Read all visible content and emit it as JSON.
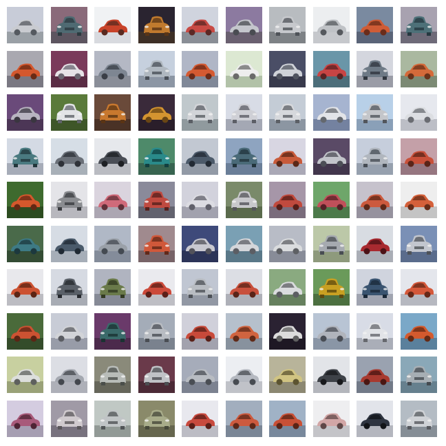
{
  "grid": {
    "rows": 10,
    "cols": 10
  },
  "tiles": [
    {
      "bg": "#c8ccd8",
      "ground": "#9aa0a6",
      "car": "#c9cbd0",
      "dark": "#555a60",
      "view": "side"
    },
    {
      "bg": "#8a6a7a",
      "ground": "#5d5560",
      "car": "#4f6a72",
      "dark": "#2c3a40",
      "view": "front"
    },
    {
      "bg": "#f0f2f4",
      "ground": "#d8dadf",
      "car": "#c8432a",
      "dark": "#5a2a20",
      "view": "side"
    },
    {
      "bg": "#2a2430",
      "ground": "#3d2f26",
      "car": "#c07a2e",
      "dark": "#5a3516",
      "view": "front"
    },
    {
      "bg": "#d0d4de",
      "ground": "#8a8e96",
      "car": "#c84a44",
      "dark": "#5c2824",
      "view": "side"
    },
    {
      "bg": "#8c7aa0",
      "ground": "#6a6070",
      "car": "#c4c6cc",
      "dark": "#4a4c52",
      "view": "side"
    },
    {
      "bg": "#b8bcc0",
      "ground": "#7e8286",
      "car": "#c6c8cc",
      "dark": "#4e5258",
      "view": "front"
    },
    {
      "bg": "#eceef0",
      "ground": "#c6c8cc",
      "car": "#bfc2c6",
      "dark": "#56595e",
      "view": "side"
    },
    {
      "bg": "#7a8aa0",
      "ground": "#5a6478",
      "car": "#cf5c36",
      "dark": "#6a2c1a",
      "view": "side"
    },
    {
      "bg": "#a8a2b0",
      "ground": "#6e6a78",
      "car": "#4d7078",
      "dark": "#263840",
      "view": "front"
    },
    {
      "bg": "#a9a8b0",
      "ground": "#7a7882",
      "car": "#d4582e",
      "dark": "#6a2a14",
      "view": "side"
    },
    {
      "bg": "#7a3a5a",
      "ground": "#5a2c44",
      "car": "#e6e2e6",
      "dark": "#6a6670",
      "view": "side"
    },
    {
      "bg": "#b4b8c4",
      "ground": "#8a8e98",
      "car": "#7e8692",
      "dark": "#3a3e46",
      "view": "side"
    },
    {
      "bg": "#c6d0de",
      "ground": "#8c96a4",
      "car": "#b0b8c0",
      "dark": "#4a5058",
      "view": "front"
    },
    {
      "bg": "#b0b6c6",
      "ground": "#808898",
      "car": "#d45a32",
      "dark": "#6a2a18",
      "view": "side"
    },
    {
      "bg": "#dce8d2",
      "ground": "#b2c2a8",
      "car": "#eeeeee",
      "dark": "#6a6a6a",
      "view": "side"
    },
    {
      "bg": "#4a4e66",
      "ground": "#383a4c",
      "car": "#cfd2d8",
      "dark": "#505460",
      "view": "side"
    },
    {
      "bg": "#6a96a8",
      "ground": "#4c6e7a",
      "car": "#c84444",
      "dark": "#5a2222",
      "view": "side"
    },
    {
      "bg": "#d4d6de",
      "ground": "#9a9ca6",
      "car": "#6e7a86",
      "dark": "#30363e",
      "view": "front"
    },
    {
      "bg": "#aab8a0",
      "ground": "#7c8a74",
      "car": "#d46a3a",
      "dark": "#6a321a",
      "view": "side"
    },
    {
      "bg": "#6a4a7a",
      "ground": "#4c3656",
      "car": "#b8b4c0",
      "dark": "#3a3640",
      "view": "side"
    },
    {
      "bg": "#5a7a3a",
      "ground": "#3e5628",
      "car": "#e2e4e6",
      "dark": "#60646a",
      "view": "front"
    },
    {
      "bg": "#6a4a3a",
      "ground": "#4a3226",
      "car": "#c8782e",
      "dark": "#5a3414",
      "view": "front"
    },
    {
      "bg": "#3a2a3a",
      "ground": "#2a1e2a",
      "car": "#d49430",
      "dark": "#6a4614",
      "view": "side"
    },
    {
      "bg": "#c0c8cc",
      "ground": "#909a9e",
      "car": "#d2d4d8",
      "dark": "#5a5e64",
      "view": "front"
    },
    {
      "bg": "#d8dce6",
      "ground": "#a4a8b4",
      "car": "#cfd0d6",
      "dark": "#5c5e66",
      "view": "front"
    },
    {
      "bg": "#c4ccd6",
      "ground": "#8c96a2",
      "car": "#d6d8dc",
      "dark": "#5c6066",
      "view": "front"
    },
    {
      "bg": "#a6b4d0",
      "ground": "#7482a0",
      "car": "#e2e4e8",
      "dark": "#64686e",
      "view": "side"
    },
    {
      "bg": "#b8d0e8",
      "ground": "#8aa0b8",
      "car": "#c4c6ca",
      "dark": "#52565c",
      "view": "front"
    },
    {
      "bg": "#e6e8ee",
      "ground": "#bcbec6",
      "car": "#dcdee2",
      "dark": "#6a6c72",
      "view": "side"
    },
    {
      "bg": "#d4dae4",
      "ground": "#a6acb8",
      "car": "#4a7a80",
      "dark": "#22383c",
      "view": "front"
    },
    {
      "bg": "#d6dee6",
      "ground": "#a8b0b8",
      "car": "#6a7078",
      "dark": "#2e3238",
      "view": "side"
    },
    {
      "bg": "#e6e8ec",
      "ground": "#babcc2",
      "car": "#4a4e56",
      "dark": "#1e2024",
      "view": "side"
    },
    {
      "bg": "#4e8a6a",
      "ground": "#386450",
      "car": "#2a8a8a",
      "dark": "#124040",
      "view": "front"
    },
    {
      "bg": "#c2c8d2",
      "ground": "#929aa6",
      "car": "#4c5a6a",
      "dark": "#222a34",
      "view": "side"
    },
    {
      "bg": "#8ea4c0",
      "ground": "#6a7e98",
      "car": "#4a6a78",
      "dark": "#22343c",
      "view": "front"
    },
    {
      "bg": "#d8d6e2",
      "ground": "#aaa8b6",
      "car": "#c85a3a",
      "dark": "#5c2818",
      "view": "side"
    },
    {
      "bg": "#5a4a66",
      "ground": "#42364c",
      "car": "#c2c4ca",
      "dark": "#4c4e56",
      "view": "side"
    },
    {
      "bg": "#c6cedc",
      "ground": "#96a0ae",
      "car": "#b0b6be",
      "dark": "#464c54",
      "view": "front"
    },
    {
      "bg": "#c4a0a8",
      "ground": "#967680",
      "car": "#c8503a",
      "dark": "#5a2418",
      "view": "side"
    },
    {
      "bg": "#3e6a2e",
      "ground": "#2c4c20",
      "car": "#d4582c",
      "dark": "#642814",
      "view": "side"
    },
    {
      "bg": "#e4e4e8",
      "ground": "#b8b8be",
      "car": "#8a8c90",
      "dark": "#3a3c40",
      "view": "front"
    },
    {
      "bg": "#dad4de",
      "ground": "#aca6b2",
      "car": "#d06a7a",
      "dark": "#603038",
      "view": "side"
    },
    {
      "bg": "#8a8a9a",
      "ground": "#62626e",
      "car": "#c04a40",
      "dark": "#56201c",
      "view": "front"
    },
    {
      "bg": "#d2d2dc",
      "ground": "#a2a2ae",
      "car": "#dcdce2",
      "dark": "#60606a",
      "view": "side"
    },
    {
      "bg": "#7a8a6a",
      "ground": "#5a6a4c",
      "car": "#c8c8cc",
      "dark": "#54545a",
      "view": "front"
    },
    {
      "bg": "#a696a8",
      "ground": "#7a6c7c",
      "car": "#c04a3e",
      "dark": "#561e18",
      "view": "side"
    },
    {
      "bg": "#6ea66a",
      "ground": "#4c7a4a",
      "car": "#c0505a",
      "dark": "#562026",
      "view": "side"
    },
    {
      "bg": "#c6c2cc",
      "ground": "#96929e",
      "car": "#cc5a3e",
      "dark": "#5e2818",
      "view": "side"
    },
    {
      "bg": "#eeeeee",
      "ground": "#c4c4c4",
      "car": "#d4603a",
      "dark": "#662c18",
      "view": "side"
    },
    {
      "bg": "#4a6a4a",
      "ground": "#344c34",
      "car": "#3e7a84",
      "dark": "#1c383e",
      "view": "side"
    },
    {
      "bg": "#d6dce4",
      "ground": "#a6aeb8",
      "car": "#4a5a6a",
      "dark": "#202a34",
      "view": "side"
    },
    {
      "bg": "#b0b8c6",
      "ground": "#848c9a",
      "car": "#9aa0a8",
      "dark": "#444a52",
      "view": "side"
    },
    {
      "bg": "#a08a8e",
      "ground": "#786468",
      "car": "#d0583a",
      "dark": "#622818",
      "view": "front"
    },
    {
      "bg": "#3e4a7a",
      "ground": "#2c3458",
      "car": "#c8c8d0",
      "dark": "#52525a",
      "view": "side"
    },
    {
      "bg": "#7aa0b4",
      "ground": "#5a7888",
      "car": "#d4d6da",
      "dark": "#5c5e64",
      "view": "side"
    },
    {
      "bg": "#b8bcc6",
      "ground": "#888c98",
      "car": "#dadcde",
      "dark": "#5e6064",
      "view": "side"
    },
    {
      "bg": "#bcc8a8",
      "ground": "#8e9a7c",
      "car": "#a6aab0",
      "dark": "#484c52",
      "view": "front"
    },
    {
      "bg": "#d8dce2",
      "ground": "#aaaeb6",
      "car": "#a82a30",
      "dark": "#4c1216",
      "view": "side"
    },
    {
      "bg": "#7a90b6",
      "ground": "#5a6c8c",
      "car": "#c2c6ce",
      "dark": "#4e5258",
      "view": "front"
    },
    {
      "bg": "#e8e8ec",
      "ground": "#bcbcc2",
      "car": "#cc5232",
      "dark": "#5c2414",
      "view": "side"
    },
    {
      "bg": "#d6dae2",
      "ground": "#a8acb4",
      "car": "#5a6068",
      "dark": "#26292e",
      "view": "front"
    },
    {
      "bg": "#b0b4c0",
      "ground": "#868a96",
      "car": "#6a7a4a",
      "dark": "#323a22",
      "view": "front"
    },
    {
      "bg": "#eaeaee",
      "ground": "#bebec4",
      "car": "#cc4a3a",
      "dark": "#5c2018",
      "view": "side"
    },
    {
      "bg": "#c0c6d2",
      "ground": "#9298a4",
      "car": "#b8bcc2",
      "dark": "#4c5056",
      "view": "front"
    },
    {
      "bg": "#dcdee4",
      "ground": "#aeb0b8",
      "car": "#c8503c",
      "dark": "#5a2418",
      "view": "side"
    },
    {
      "bg": "#8aaa80",
      "ground": "#66805e",
      "car": "#dadcde",
      "dark": "#5c5e62",
      "view": "side"
    },
    {
      "bg": "#6a9a5a",
      "ground": "#4c7040",
      "car": "#c8a022",
      "dark": "#5e4a0e",
      "view": "front"
    },
    {
      "bg": "#d0d4de",
      "ground": "#a0a4b0",
      "car": "#3a5470",
      "dark": "#1a2838",
      "view": "front"
    },
    {
      "bg": "#e4e6ec",
      "ground": "#b6b8c0",
      "car": "#d4583a",
      "dark": "#662818",
      "view": "side"
    },
    {
      "bg": "#4a6a3a",
      "ground": "#344c2a",
      "car": "#cc5232",
      "dark": "#5c2414",
      "view": "side"
    },
    {
      "bg": "#c8ccd6",
      "ground": "#989ca8",
      "car": "#d2d4d8",
      "dark": "#5a5c62",
      "view": "side"
    },
    {
      "bg": "#6a3a6a",
      "ground": "#4c2a4c",
      "car": "#3a6a6a",
      "dark": "#1a3232",
      "view": "front"
    },
    {
      "bg": "#a4acb8",
      "ground": "#7a828e",
      "car": "#b8bcc2",
      "dark": "#4a4e54",
      "view": "front"
    },
    {
      "bg": "#d0d0da",
      "ground": "#a2a2ae",
      "car": "#c84a3a",
      "dark": "#5a2018",
      "view": "side"
    },
    {
      "bg": "#b6c0cc",
      "ground": "#88929e",
      "car": "#d06440",
      "dark": "#602a18",
      "view": "side"
    },
    {
      "bg": "#2a2232",
      "ground": "#1e1824",
      "car": "#dcdcdc",
      "dark": "#606060",
      "view": "side"
    },
    {
      "bg": "#b8c4d4",
      "ground": "#8a96a6",
      "car": "#b0b4bc",
      "dark": "#484c54",
      "view": "side"
    },
    {
      "bg": "#d8dce6",
      "ground": "#aaaeb8",
      "car": "#e2e4e8",
      "dark": "#66686e",
      "view": "front"
    },
    {
      "bg": "#7aa8c8",
      "ground": "#5a809c",
      "car": "#d45a2e",
      "dark": "#662a14",
      "view": "side"
    },
    {
      "bg": "#c8d0a0",
      "ground": "#9aa278",
      "car": "#dcdedc",
      "dark": "#5e605e",
      "view": "side"
    },
    {
      "bg": "#dcdee4",
      "ground": "#aeb0b8",
      "car": "#a4a8b0",
      "dark": "#44484e",
      "view": "side"
    },
    {
      "bg": "#8a8a7a",
      "ground": "#66665a",
      "car": "#b8bcb8",
      "dark": "#4a4e4a",
      "view": "front"
    },
    {
      "bg": "#6a3a4a",
      "ground": "#4c2a36",
      "car": "#c0c2c6",
      "dark": "#4c4e52",
      "view": "front"
    },
    {
      "bg": "#a6acba",
      "ground": "#7c8290",
      "car": "#b8bcc2",
      "dark": "#4a4e54",
      "view": "side"
    },
    {
      "bg": "#eceef2",
      "ground": "#c0c2c8",
      "car": "#b4b8c0",
      "dark": "#484c52",
      "view": "side"
    },
    {
      "bg": "#b8b49a",
      "ground": "#8c8872",
      "car": "#d0c482",
      "dark": "#5c5430",
      "view": "side"
    },
    {
      "bg": "#e2e4e8",
      "ground": "#b4b6bc",
      "car": "#3e4248",
      "dark": "#18191c",
      "view": "side"
    },
    {
      "bg": "#9aa2b0",
      "ground": "#727a88",
      "car": "#a83a30",
      "dark": "#4a1612",
      "view": "side"
    },
    {
      "bg": "#8aa8b8",
      "ground": "#66808e",
      "car": "#a6aeb4",
      "dark": "#444a50",
      "view": "front"
    },
    {
      "bg": "#d4cce0",
      "ground": "#a69eb2",
      "car": "#a85a7a",
      "dark": "#4e2434",
      "view": "side"
    },
    {
      "bg": "#a09aa6",
      "ground": "#78727e",
      "car": "#d0cace",
      "dark": "#5a565a",
      "view": "front"
    },
    {
      "bg": "#c0c8c4",
      "ground": "#929a96",
      "car": "#c0c4c6",
      "dark": "#505456",
      "view": "front"
    },
    {
      "bg": "#8a8a6a",
      "ground": "#66664e",
      "car": "#a8ac8a",
      "dark": "#46483a",
      "view": "front"
    },
    {
      "bg": "#e8e8ee",
      "ground": "#bcbcc4",
      "car": "#c84a3e",
      "dark": "#5a1e18",
      "view": "side"
    },
    {
      "bg": "#a2aebe",
      "ground": "#7a8696",
      "car": "#cc5a3e",
      "dark": "#5e2818",
      "view": "side"
    },
    {
      "bg": "#a0b2c6",
      "ground": "#78889c",
      "car": "#c85036",
      "dark": "#5a2416",
      "view": "side"
    },
    {
      "bg": "#eeeef0",
      "ground": "#c4c4c8",
      "car": "#d2a6a6",
      "dark": "#604848",
      "view": "side"
    },
    {
      "bg": "#e2e4ea",
      "ground": "#b4b6be",
      "car": "#2e3440",
      "dark": "#121418",
      "view": "side"
    },
    {
      "bg": "#b4bcc4",
      "ground": "#868e96",
      "car": "#cfd2d6",
      "dark": "#56595e",
      "view": "front"
    }
  ]
}
